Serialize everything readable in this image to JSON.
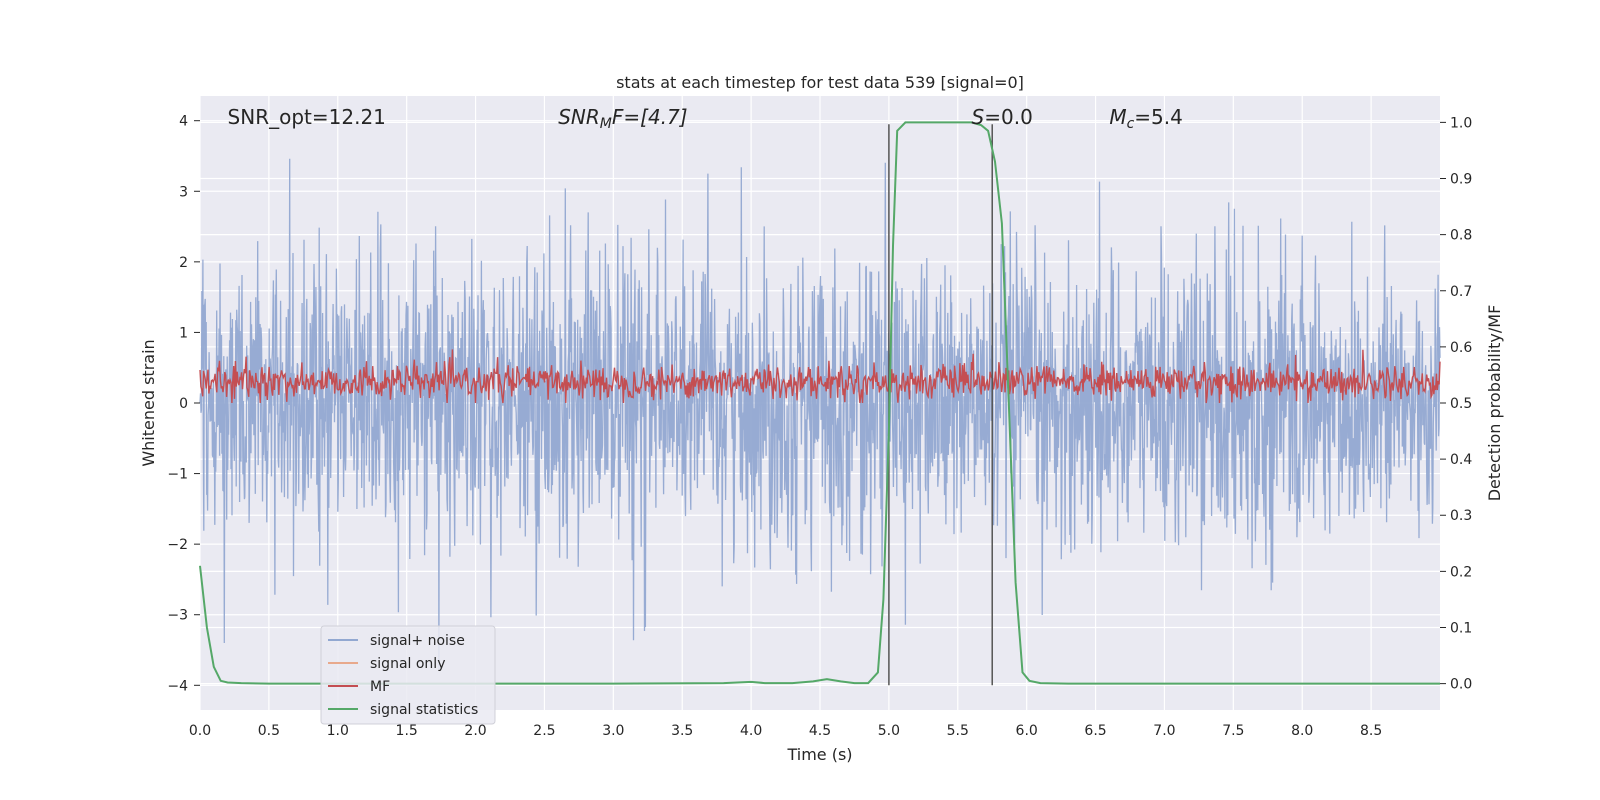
{
  "chart_data": {
    "type": "line",
    "title": "stats at each timestep for test data 539 [signal=0]",
    "xlabel": "Time (s)",
    "ylabel": "Whitened strain",
    "ylabel_right": "Detection probability/MF",
    "xlim": [
      0.0,
      9.0
    ],
    "ylim": [
      -4.35,
      4.35
    ],
    "ylim_right": [
      -0.047,
      1.047
    ],
    "x_ticks": [
      "0.0",
      "0.5",
      "1.0",
      "1.5",
      "2.0",
      "2.5",
      "3.0",
      "3.5",
      "4.0",
      "4.5",
      "5.0",
      "5.5",
      "6.0",
      "6.5",
      "7.0",
      "7.5",
      "8.0",
      "8.5"
    ],
    "y_ticks": [
      "4",
      "3",
      "2",
      "1",
      "0",
      "−1",
      "−2",
      "−3",
      "−4"
    ],
    "y_ticks_right": [
      "1.0",
      "0.9",
      "0.8",
      "0.7",
      "0.6",
      "0.5",
      "0.4",
      "0.3",
      "0.2",
      "0.1",
      "0.0"
    ],
    "grid": true,
    "legend_position": "lower-left",
    "annotations": [
      {
        "prefix": "SNR_opt",
        "sub": "",
        "rest": "=12.21",
        "x": 0.2
      },
      {
        "prefix": "SNR",
        "sub": "M",
        "rest": "F=[4.7]",
        "x": 2.6,
        "italic": true
      },
      {
        "prefix": "S",
        "sub": "",
        "rest": "=0.0",
        "x": 5.6,
        "italic": true
      },
      {
        "prefix": "M",
        "sub": "c",
        "rest": "=5.4",
        "x": 6.6,
        "italic": true
      }
    ],
    "vertical_markers": [
      5.0,
      5.75
    ],
    "series": [
      {
        "name": "signal+ noise",
        "color": "#92a8d1",
        "noise_amplitude": 1.0,
        "range": [
          -3.95,
          3.95
        ]
      },
      {
        "name": "signal only",
        "color": "#e8a98c",
        "values": []
      },
      {
        "name": "MF",
        "color": "#c44e52",
        "mean": 0.3,
        "range": [
          0.0,
          1.0
        ]
      },
      {
        "name": "signal statistics",
        "color": "#55a868",
        "axis": "right",
        "x": [
          0.0,
          0.05,
          0.1,
          0.15,
          0.2,
          0.3,
          0.5,
          1.0,
          2.0,
          3.0,
          3.8,
          3.9,
          4.0,
          4.1,
          4.3,
          4.45,
          4.55,
          4.65,
          4.75,
          4.85,
          4.92,
          4.96,
          5.0,
          5.03,
          5.06,
          5.12,
          5.3,
          5.6,
          5.67,
          5.72,
          5.77,
          5.82,
          5.87,
          5.92,
          5.97,
          6.02,
          6.1,
          6.3,
          7.0,
          8.0,
          9.0
        ],
        "values": [
          0.21,
          0.1,
          0.03,
          0.005,
          0.002,
          0.001,
          0.0,
          0.0,
          0.0,
          0.0,
          0.001,
          0.002,
          0.003,
          0.001,
          0.001,
          0.004,
          0.008,
          0.004,
          0.001,
          0.001,
          0.02,
          0.15,
          0.45,
          0.78,
          0.985,
          1.0,
          1.0,
          1.0,
          0.995,
          0.985,
          0.93,
          0.82,
          0.5,
          0.18,
          0.02,
          0.005,
          0.001,
          0.0,
          0.0,
          0.0,
          0.0
        ]
      }
    ]
  }
}
